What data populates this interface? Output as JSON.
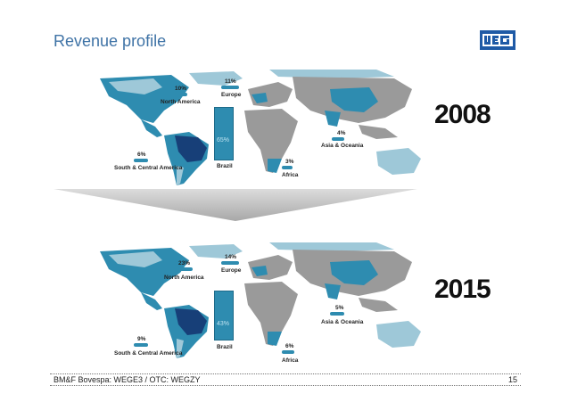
{
  "slide": {
    "title": "Revenue profile",
    "logo_text": "WEG",
    "footer": "BM&F Bovespa: WEGE3 / OTC: WEGZY",
    "page_number": "15"
  },
  "colors": {
    "title": "#3f73a6",
    "map_gray": "#9a9a9a",
    "region_blue": "#2e8cb0",
    "brazil_dark": "#173f78",
    "light_blue": "#9ec8d8"
  },
  "panels": [
    {
      "year": "2008",
      "north_america": {
        "pct": "10%",
        "label": "North America"
      },
      "europe": {
        "pct": "11%",
        "label": "Europe"
      },
      "asia_oceania": {
        "pct": "4%",
        "label": "Asia & Oceania"
      },
      "south_central_america": {
        "pct": "6%",
        "label": "South & Central America"
      },
      "brazil": {
        "pct": "65%",
        "label": "Brazil"
      },
      "africa": {
        "pct": "3%",
        "label": "Africa"
      }
    },
    {
      "year": "2015",
      "north_america": {
        "pct": "23%",
        "label": "North America"
      },
      "europe": {
        "pct": "14%",
        "label": "Europe"
      },
      "asia_oceania": {
        "pct": "5%",
        "label": "Asia & Oceania"
      },
      "south_central_america": {
        "pct": "9%",
        "label": "South & Central America"
      },
      "brazil": {
        "pct": "43%",
        "label": "Brazil"
      },
      "africa": {
        "pct": "6%",
        "label": "Africa"
      }
    }
  ]
}
